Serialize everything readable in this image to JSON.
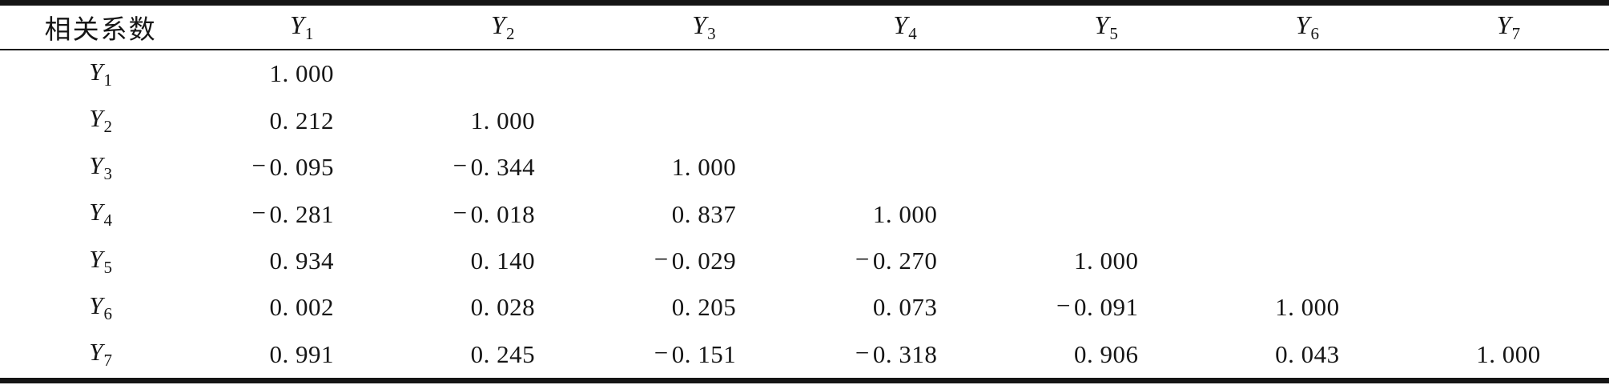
{
  "page": {
    "background": "#ffffff",
    "text_color": "#161616",
    "rule_color": "#151515"
  },
  "table": {
    "corner_label": "相关系数",
    "column_headers": [
      {
        "base": "Y",
        "sub": "1"
      },
      {
        "base": "Y",
        "sub": "2"
      },
      {
        "base": "Y",
        "sub": "3"
      },
      {
        "base": "Y",
        "sub": "4"
      },
      {
        "base": "Y",
        "sub": "5"
      },
      {
        "base": "Y",
        "sub": "6"
      },
      {
        "base": "Y",
        "sub": "7"
      }
    ],
    "rows": [
      {
        "label": {
          "base": "Y",
          "sub": "1"
        },
        "values": [
          "1. 000",
          "",
          "",
          "",
          "",
          "",
          ""
        ]
      },
      {
        "label": {
          "base": "Y",
          "sub": "2"
        },
        "values": [
          "0. 212",
          "1. 000",
          "",
          "",
          "",
          "",
          ""
        ]
      },
      {
        "label": {
          "base": "Y",
          "sub": "3"
        },
        "values": [
          "-0. 095",
          "-0. 344",
          "1. 000",
          "",
          "",
          "",
          ""
        ]
      },
      {
        "label": {
          "base": "Y",
          "sub": "4"
        },
        "values": [
          "-0. 281",
          "-0. 018",
          "0. 837",
          "1. 000",
          "",
          "",
          ""
        ]
      },
      {
        "label": {
          "base": "Y",
          "sub": "5"
        },
        "values": [
          "0. 934",
          "0. 140",
          "-0. 029",
          "-0. 270",
          "1. 000",
          "",
          ""
        ]
      },
      {
        "label": {
          "base": "Y",
          "sub": "6"
        },
        "values": [
          "0. 002",
          "0. 028",
          "0. 205",
          "0. 073",
          "-0. 091",
          "1. 000",
          ""
        ]
      },
      {
        "label": {
          "base": "Y",
          "sub": "7"
        },
        "values": [
          "0. 991",
          "0. 245",
          "-0. 151",
          "-0. 318",
          "0. 906",
          "0. 043",
          "1. 000"
        ]
      }
    ]
  },
  "chart_data": {
    "type": "table",
    "title": "相关系数",
    "variables": [
      "Y1",
      "Y2",
      "Y3",
      "Y4",
      "Y5",
      "Y6",
      "Y7"
    ],
    "matrix_lower_triangle": [
      [
        1.0
      ],
      [
        0.212,
        1.0
      ],
      [
        -0.095,
        -0.344,
        1.0
      ],
      [
        -0.281,
        -0.018,
        0.837,
        1.0
      ],
      [
        0.934,
        0.14,
        -0.029,
        -0.27,
        1.0
      ],
      [
        0.002,
        0.028,
        0.205,
        0.073,
        -0.091,
        1.0
      ],
      [
        0.991,
        0.245,
        -0.151,
        -0.318,
        0.906,
        0.043,
        1.0
      ]
    ]
  }
}
